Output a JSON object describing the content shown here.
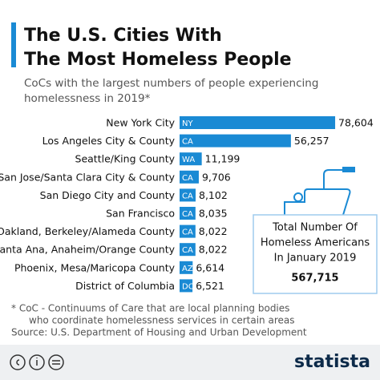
{
  "chart_data": {
    "type": "bar",
    "orientation": "horizontal",
    "title": [
      "The U.S. Cities With",
      "The Most Homeless People"
    ],
    "subtitle": [
      "CoCs with the largest numbers of people experiencing",
      "homelessness in 2019*"
    ],
    "categories": [
      "New York City",
      "Los Angeles City & County",
      "Seattle/King County",
      "San Jose/Santa Clara City & County",
      "San Diego City and County",
      "San Francisco",
      "Oakland, Berkeley/Alameda County",
      "Santa Ana, Anaheim/Orange County",
      "Phoenix, Mesa/Maricopa County",
      "District of Columbia"
    ],
    "states": [
      "NY",
      "CA",
      "WA",
      "CA",
      "CA",
      "CA",
      "CA",
      "CA",
      "AZ",
      "DC"
    ],
    "values": [
      78604,
      56257,
      11199,
      9706,
      8102,
      8035,
      8022,
      8022,
      6614,
      6521
    ],
    "value_labels": [
      "78,604",
      "56,257",
      "11,199",
      "9,706",
      "8,102",
      "8,035",
      "8,022",
      "8,022",
      "6,614",
      "6,521"
    ],
    "color": "#1a8ad4",
    "xlim": [
      0,
      80000
    ],
    "annotation": {
      "lines": [
        "Total Number Of",
        "Homeless Americans",
        "In January 2019"
      ],
      "value": "567,715"
    },
    "footnote": [
      "* CoC - Continuums of Care that are local planning bodies",
      "who coordinate homelessness services in certain areas"
    ],
    "source": "Source: U.S. Department of Housing and Urban Development",
    "brand": "statista"
  }
}
